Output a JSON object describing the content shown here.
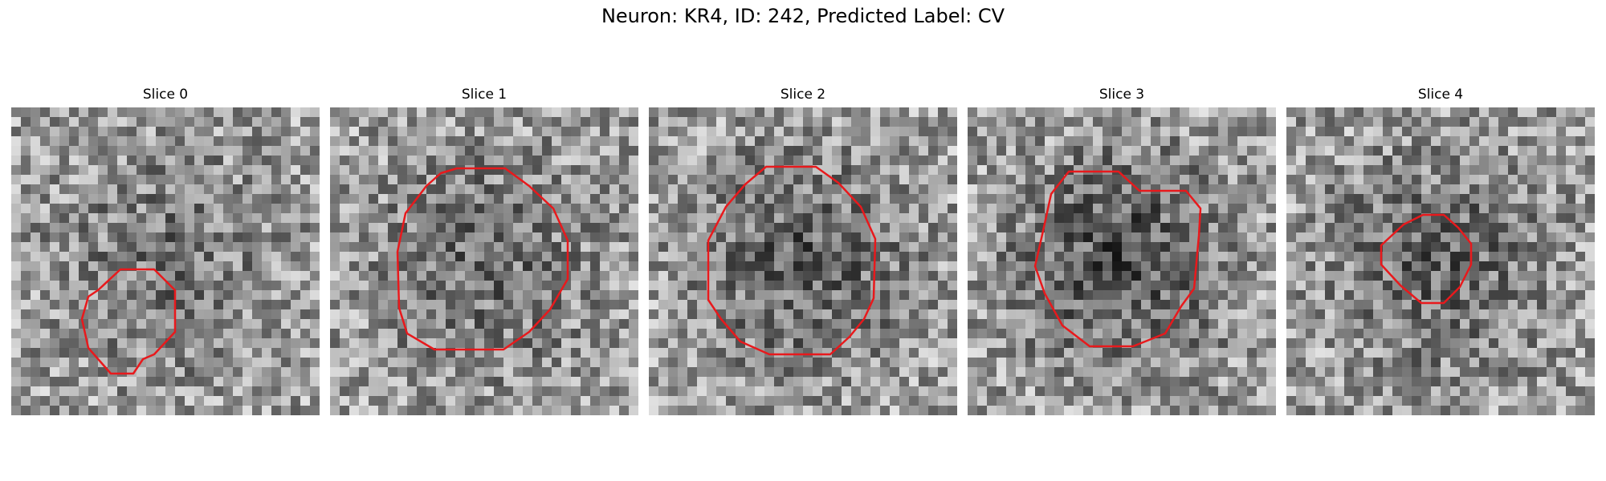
{
  "figure": {
    "title": "Neuron: KR4, ID: 242, Predicted Label: CV"
  },
  "panels": [
    {
      "title": "Slice 0",
      "seed": 11,
      "darkness": 0.3
    },
    {
      "title": "Slice 1",
      "seed": 23,
      "darkness": 0.35
    },
    {
      "title": "Slice 2",
      "seed": 37,
      "darkness": 0.45
    },
    {
      "title": "Slice 3",
      "seed": 51,
      "darkness": 0.55
    },
    {
      "title": "Slice 4",
      "seed": 67,
      "darkness": 0.4
    }
  ],
  "colors": {
    "contour": "#e8191c"
  }
}
